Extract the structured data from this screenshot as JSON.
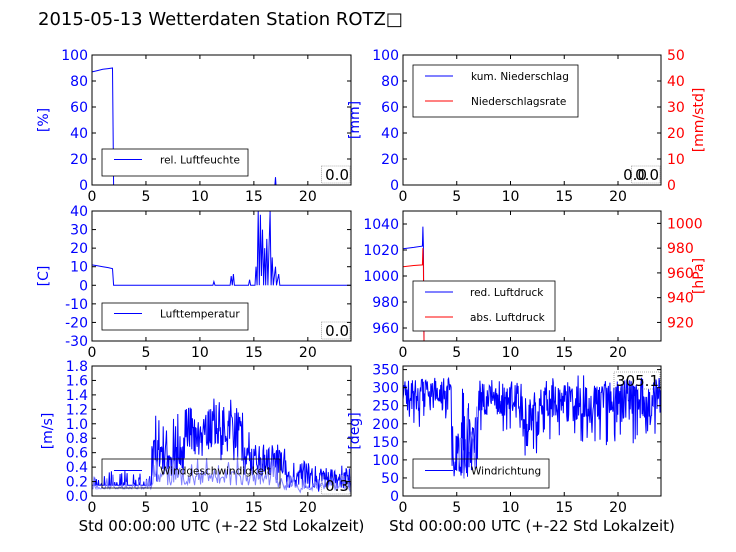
{
  "figure": {
    "title": "2015-05-13 Wetterdaten Station ROTZ□"
  },
  "colors": {
    "primary": "#0000ff",
    "secondary": "#ff0000",
    "light": "#8080ff",
    "axis": "#000000"
  },
  "chart_data": [
    {
      "id": "humidity",
      "type": "line",
      "ylabel": "[%]",
      "ylim": [
        0,
        100
      ],
      "yticks": [
        0,
        20,
        40,
        60,
        80,
        100
      ],
      "xlim": [
        0,
        24
      ],
      "xticks": [
        0,
        5,
        10,
        15,
        20
      ],
      "legend": [
        "rel. Luftfeuchte"
      ],
      "legend_loc": "lower-left",
      "annotation": "0.0",
      "series": [
        {
          "name": "rel. Luftfeuchte",
          "color": "#0000ff",
          "points": [
            [
              0,
              87
            ],
            [
              0.5,
              88
            ],
            [
              1,
              89
            ],
            [
              1.5,
              89.5
            ],
            [
              1.9,
              90
            ],
            [
              2.0,
              0
            ],
            [
              24,
              0
            ]
          ]
        },
        {
          "color": "#0000ff",
          "points": [
            [
              16.95,
              0
            ],
            [
              17.0,
              6
            ],
            [
              17.05,
              0
            ]
          ]
        }
      ]
    },
    {
      "id": "precip",
      "type": "line",
      "ylabel": "[mm]",
      "ylim": [
        0,
        100
      ],
      "yticks": [
        0,
        20,
        40,
        60,
        80,
        100
      ],
      "y2label": "[mm/std]",
      "y2lim": [
        0,
        50
      ],
      "y2ticks": [
        0,
        10,
        20,
        30,
        40,
        50
      ],
      "xlim": [
        0,
        24
      ],
      "xticks": [
        0,
        5,
        10,
        15,
        20
      ],
      "legend": [
        "kum. Niederschlag",
        "Niederschlagsrate"
      ],
      "legend_loc": "upper-left",
      "annotation": "0.0",
      "annotation2": "0.0",
      "series": [
        {
          "name": "kum. Niederschlag",
          "color": "#0000ff",
          "points": [
            [
              0,
              0
            ],
            [
              24,
              0
            ]
          ]
        },
        {
          "name": "Niederschlagsrate",
          "color": "#ff0000",
          "axis": "y2",
          "points": [
            [
              0,
              0
            ],
            [
              24,
              0
            ]
          ]
        }
      ]
    },
    {
      "id": "temperature",
      "type": "line",
      "ylabel": "[C]",
      "ylim": [
        -30,
        40
      ],
      "yticks": [
        -30,
        -20,
        -10,
        0,
        10,
        20,
        30,
        40
      ],
      "xlim": [
        0,
        24
      ],
      "xticks": [
        0,
        5,
        10,
        15,
        20
      ],
      "legend": [
        "Lufttemperatur"
      ],
      "legend_loc": "lower-left",
      "annotation": "0.0",
      "series": [
        {
          "name": "Lufttemperatur",
          "color": "#0000ff",
          "points": [
            [
              0,
              11
            ],
            [
              0.5,
              10.5
            ],
            [
              1,
              10
            ],
            [
              1.5,
              9.5
            ],
            [
              1.9,
              9
            ],
            [
              2.0,
              0
            ],
            [
              11.2,
              0
            ],
            [
              11.3,
              2
            ],
            [
              11.4,
              0
            ],
            [
              12.8,
              0
            ],
            [
              12.9,
              5
            ],
            [
              13.0,
              0
            ],
            [
              13.1,
              6
            ],
            [
              13.2,
              0
            ],
            [
              14.5,
              0
            ],
            [
              14.6,
              3
            ],
            [
              14.7,
              0
            ],
            [
              15.1,
              0
            ],
            [
              15.2,
              10
            ],
            [
              15.3,
              0
            ],
            [
              15.4,
              40
            ],
            [
              15.5,
              0
            ],
            [
              15.6,
              38
            ],
            [
              15.7,
              5
            ],
            [
              15.8,
              30
            ],
            [
              15.9,
              0
            ],
            [
              16.0,
              20
            ],
            [
              16.1,
              0
            ],
            [
              16.2,
              25
            ],
            [
              16.3,
              0
            ],
            [
              16.5,
              40
            ],
            [
              16.6,
              0
            ],
            [
              16.7,
              15
            ],
            [
              16.8,
              0
            ],
            [
              17.0,
              10
            ],
            [
              17.1,
              0
            ],
            [
              17.3,
              6
            ],
            [
              17.4,
              0
            ],
            [
              24,
              0
            ]
          ]
        }
      ]
    },
    {
      "id": "pressure",
      "type": "line",
      "ylabel": "",
      "ylim": [
        950,
        1050
      ],
      "yticks": [
        960,
        980,
        1000,
        1020,
        1040
      ],
      "y2label": "[hPa]",
      "y2lim": [
        905,
        1010
      ],
      "y2ticks": [
        920,
        940,
        960,
        980,
        1000
      ],
      "xlim": [
        0,
        24
      ],
      "xticks": [
        0,
        5,
        10,
        15,
        20
      ],
      "legend": [
        "red. Luftdruck",
        "abs. Luftdruck"
      ],
      "legend_loc": "lower-left",
      "series": [
        {
          "name": "red. Luftdruck",
          "color": "#0000ff",
          "points": [
            [
              0,
              1021
            ],
            [
              1,
              1022
            ],
            [
              1.8,
              1023
            ],
            [
              1.85,
              1038
            ],
            [
              1.9,
              1023
            ],
            [
              1.95,
              950
            ]
          ]
        },
        {
          "name": "abs. Luftdruck",
          "color": "#ff0000",
          "axis": "y2",
          "points": [
            [
              0,
              965
            ],
            [
              1,
              966
            ],
            [
              1.8,
              966.5
            ],
            [
              1.85,
              980
            ],
            [
              1.9,
              966
            ],
            [
              1.95,
              905
            ]
          ]
        }
      ]
    },
    {
      "id": "windspeed",
      "type": "line",
      "ylabel": "[m/s]",
      "ylim": [
        0,
        1.8
      ],
      "yticks": [
        0.0,
        0.2,
        0.4,
        0.6,
        0.8,
        1.0,
        1.2,
        1.4,
        1.6,
        1.8
      ],
      "xlim": [
        0,
        24
      ],
      "xticks": [
        0,
        5,
        10,
        15,
        20
      ],
      "xlabel": "Std 00:00:00 UTC (+-22 Std Lokalzeit)",
      "legend": [
        "Windgeschwindigkeit"
      ],
      "legend_loc": "lower-left",
      "annotation": "0.3",
      "series": [
        {
          "name": "Windgeschwindigkeit",
          "color": "#0000ff",
          "noise": {
            "seed": 7,
            "n": 480,
            "segments": [
              [
                0,
                5.5,
                0.15,
                0.35,
                0.08
              ],
              [
                5.5,
                8.5,
                0.2,
                1.2,
                0.55
              ],
              [
                8.5,
                14,
                0.4,
                1.35,
                0.95
              ],
              [
                14,
                18,
                0.2,
                0.95,
                0.5
              ],
              [
                18,
                24,
                0.05,
                0.5,
                0.25
              ]
            ]
          }
        },
        {
          "name": "",
          "color": "#8080ff",
          "noise": {
            "seed": 11,
            "n": 260,
            "segments": [
              [
                0,
                5.5,
                0.1,
                0.3,
                0.1
              ],
              [
                5.5,
                7,
                0.1,
                0.6,
                0.3
              ],
              [
                7,
                17,
                0.15,
                0.55,
                0.25
              ],
              [
                17,
                24,
                0.05,
                0.3,
                0.15
              ]
            ]
          }
        }
      ]
    },
    {
      "id": "winddir",
      "type": "line",
      "ylabel": "[deg]",
      "ylim": [
        0,
        360
      ],
      "yticks": [
        0,
        50,
        100,
        150,
        200,
        250,
        300,
        350
      ],
      "xlim": [
        0,
        24
      ],
      "xticks": [
        0,
        5,
        10,
        15,
        20
      ],
      "xlabel": "Std 00:00:00 UTC (+-22 Std Lokalzeit)",
      "legend": [
        "Windrichtung"
      ],
      "legend_loc": "lower-left",
      "annotation": "305.1",
      "series": [
        {
          "name": "Windrichtung",
          "color": "#0000ff",
          "noise": {
            "seed": 23,
            "n": 520,
            "segments": [
              [
                0,
                4.5,
                180,
                335,
                280
              ],
              [
                4.5,
                7,
                40,
                300,
                140
              ],
              [
                7,
                11,
                170,
                330,
                270
              ],
              [
                11,
                13,
                110,
                300,
                230
              ],
              [
                13,
                18,
                150,
                335,
                260
              ],
              [
                18,
                24,
                140,
                335,
                270
              ]
            ]
          }
        },
        {
          "name": "",
          "color": "#8080ff",
          "noise": {
            "seed": 31,
            "n": 140,
            "segments": [
              [
                5,
                7,
                40,
                250,
                120
              ]
            ]
          }
        }
      ]
    }
  ]
}
